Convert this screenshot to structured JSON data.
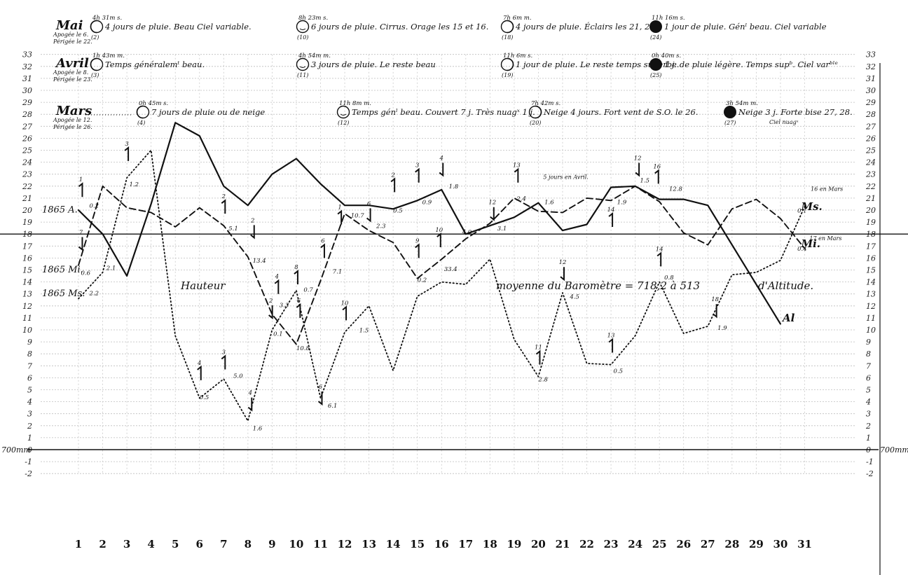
{
  "chart_data": {
    "type": "line",
    "x": [
      1,
      2,
      3,
      4,
      5,
      6,
      7,
      8,
      9,
      10,
      11,
      12,
      13,
      14,
      15,
      16,
      17,
      18,
      19,
      20,
      21,
      22,
      23,
      24,
      25,
      26,
      27,
      28,
      29,
      30,
      31
    ],
    "ylim": [
      -2,
      33
    ],
    "y_ticks": [
      "33",
      "32",
      "31",
      "30",
      "29",
      "28",
      "27",
      "26",
      "25",
      "24",
      "23",
      "22",
      "21",
      "20",
      "19",
      "18",
      "17",
      "16",
      "15",
      "14",
      "13",
      "12",
      "11",
      "10",
      "9",
      "8",
      "7",
      "6",
      "5",
      "4",
      "3",
      "2",
      "1",
      "0",
      "-1",
      "-2"
    ],
    "baseline_label_left": "700mm",
    "baseline_label_right": "700mm",
    "mean_line": {
      "value": 18,
      "label_left": "Hauteur",
      "label_mid": "moyenne du Baromètre = 718,2 à 513",
      "label_right": "d'Altitude."
    },
    "series": [
      {
        "name": "A",
        "start_label": "1865 A.",
        "end_label": "Al",
        "style": "solid",
        "values": [
          20,
          18,
          14.5,
          20.5,
          27.3,
          26.2,
          22,
          20.4,
          23,
          24.3,
          22.2,
          20.4,
          20.4,
          20.1,
          20.8,
          21.7,
          18,
          18.7,
          19.4,
          20.6,
          18.3,
          18.8,
          21.9,
          22,
          20.9,
          20.9,
          20.4,
          null,
          null,
          10.5,
          null
        ]
      },
      {
        "name": "M",
        "start_label": "1865 Mi.",
        "end_label": "Mi.",
        "style": "dashed",
        "values": [
          15.4,
          22,
          20.2,
          19.8,
          18.6,
          20.2,
          18.7,
          16.1,
          11.3,
          8.8,
          14.1,
          19.7,
          18.3,
          17.3,
          14.3,
          15.9,
          17.6,
          18.9,
          21,
          19.9,
          19.8,
          21,
          20.8,
          22,
          20.7,
          18.1,
          17.1,
          20.1,
          20.9,
          19.3,
          16.8
        ]
      },
      {
        "name": "Ms",
        "start_label": "1865 Ms.",
        "end_label": "Ms.",
        "style": "dotted",
        "values": [
          12.6,
          14.8,
          22.7,
          25,
          9.5,
          4.3,
          5.9,
          2.4,
          10,
          13.3,
          4.3,
          9.8,
          12,
          6.6,
          12.8,
          14,
          13.8,
          15.9,
          9.2,
          6.1,
          13.1,
          7.2,
          7.1,
          9.5,
          14,
          9.7,
          10.3,
          14.6,
          14.8,
          15.8,
          20.3
        ]
      }
    ],
    "point_labels": [
      {
        "t": "0.2",
        "x": 1.45,
        "y": 20.2
      },
      {
        "t": "0.6",
        "x": 1.1,
        "y": 14.6
      },
      {
        "t": "2.2",
        "x": 1.45,
        "y": 12.9
      },
      {
        "t": "2.1",
        "x": 2.15,
        "y": 15.0
      },
      {
        "t": "1.2",
        "x": 3.1,
        "y": 22.0
      },
      {
        "t": "5.1",
        "x": 7.2,
        "y": 18.3
      },
      {
        "t": "13.4",
        "x": 8.2,
        "y": 15.6
      },
      {
        "t": "0.5",
        "x": 6.0,
        "y": 4.2
      },
      {
        "t": "5.0",
        "x": 7.4,
        "y": 6.0
      },
      {
        "t": "1.6",
        "x": 8.2,
        "y": 1.6
      },
      {
        "t": "3.3",
        "x": 9.3,
        "y": 11.9
      },
      {
        "t": "0.1",
        "x": 9.05,
        "y": 9.5
      },
      {
        "t": "0.7",
        "x": 10.3,
        "y": 13.2
      },
      {
        "t": "10.8",
        "x": 10.0,
        "y": 8.3
      },
      {
        "t": "7.1",
        "x": 11.5,
        "y": 14.7
      },
      {
        "t": "6.1",
        "x": 11.3,
        "y": 3.5
      },
      {
        "t": "10.7",
        "x": 12.25,
        "y": 19.4
      },
      {
        "t": "2.3",
        "x": 13.3,
        "y": 18.5
      },
      {
        "t": "1.5",
        "x": 12.6,
        "y": 9.8
      },
      {
        "t": "0.5",
        "x": 14.0,
        "y": 19.8
      },
      {
        "t": "0.9",
        "x": 15.2,
        "y": 20.5
      },
      {
        "t": "1.8",
        "x": 16.3,
        "y": 21.8
      },
      {
        "t": "0.2",
        "x": 15.0,
        "y": 14.0
      },
      {
        "t": "33.4",
        "x": 16.1,
        "y": 14.9
      },
      {
        "t": "4.0",
        "x": 16.85,
        "y": 18.0
      },
      {
        "t": "3.1",
        "x": 18.3,
        "y": 18.3
      },
      {
        "t": "2.4",
        "x": 19.1,
        "y": 20.8
      },
      {
        "t": "1.6",
        "x": 20.25,
        "y": 20.5
      },
      {
        "t": "2.8",
        "x": 20.0,
        "y": 5.7
      },
      {
        "t": "4.5",
        "x": 21.3,
        "y": 12.6
      },
      {
        "t": "1.9",
        "x": 23.25,
        "y": 20.5
      },
      {
        "t": "0.5",
        "x": 23.1,
        "y": 6.4
      },
      {
        "t": "1.5",
        "x": 24.2,
        "y": 22.3
      },
      {
        "t": "12.8",
        "x": 25.4,
        "y": 21.6
      },
      {
        "t": "0.8",
        "x": 25.2,
        "y": 14.2
      },
      {
        "t": "1.9",
        "x": 27.4,
        "y": 10.0
      },
      {
        "t": "0.1",
        "x": 30.7,
        "y": 19.8
      },
      {
        "t": "0.4",
        "x": 30.7,
        "y": 16.6
      }
    ],
    "wind_labels": [
      {
        "t": "1",
        "x": 1.1,
        "y": 21.8
      },
      {
        "t": "7",
        "x": 1.1,
        "y": 17.4
      },
      {
        "t": "3",
        "x": 3.0,
        "y": 24.8
      },
      {
        "t": "2",
        "x": 7.0,
        "y": 20.4
      },
      {
        "t": "2",
        "x": 8.2,
        "y": 18.4
      },
      {
        "t": "4",
        "x": 6.0,
        "y": 6.5
      },
      {
        "t": "3",
        "x": 7.0,
        "y": 7.4
      },
      {
        "t": "4",
        "x": 8.1,
        "y": 4.0
      },
      {
        "t": "4",
        "x": 9.2,
        "y": 13.7
      },
      {
        "t": "8",
        "x": 10.0,
        "y": 14.5
      },
      {
        "t": "2",
        "x": 8.95,
        "y": 11.7
      },
      {
        "t": "6",
        "x": 10.1,
        "y": 11.7
      },
      {
        "t": "6",
        "x": 11.1,
        "y": 16.7
      },
      {
        "t": "6",
        "x": 11.0,
        "y": 4.5
      },
      {
        "t": "10",
        "x": 12.0,
        "y": 11.5
      },
      {
        "t": "1",
        "x": 11.8,
        "y": 19.5
      },
      {
        "t": "6",
        "x": 13.0,
        "y": 19.8
      },
      {
        "t": "2",
        "x": 14.0,
        "y": 22.2
      },
      {
        "t": "3",
        "x": 15.0,
        "y": 23.0
      },
      {
        "t": "4",
        "x": 16.0,
        "y": 23.6
      },
      {
        "t": "9",
        "x": 15.0,
        "y": 16.7
      },
      {
        "t": "10",
        "x": 15.9,
        "y": 17.6
      },
      {
        "t": "12",
        "x": 18.1,
        "y": 19.9
      },
      {
        "t": "13",
        "x": 19.1,
        "y": 23.0
      },
      {
        "t": "11",
        "x": 20.0,
        "y": 7.8
      },
      {
        "t": "12",
        "x": 21.0,
        "y": 14.9
      },
      {
        "t": "13",
        "x": 23.0,
        "y": 8.8
      },
      {
        "t": "14",
        "x": 23.0,
        "y": 19.3
      },
      {
        "t": "12",
        "x": 24.1,
        "y": 23.6
      },
      {
        "t": "16",
        "x": 24.9,
        "y": 22.9
      },
      {
        "t": "14",
        "x": 25.0,
        "y": 16.0
      },
      {
        "t": "18",
        "x": 27.3,
        "y": 11.8
      }
    ],
    "annotations": [
      {
        "t": "5 jours en Avril.",
        "x": 20.2,
        "y": 22.6
      },
      {
        "t": "16 en Mars",
        "x": 31.25,
        "y": 21.6
      },
      {
        "t": "17 en Mars",
        "x": 31.2,
        "y": 17.5
      }
    ],
    "header": [
      {
        "month": "Mai",
        "apogee": "Apogée le 6.",
        "perigee": "Périgée le 22.",
        "phases": [
          {
            "time": "4h 31m s.",
            "num": "(2)",
            "text": "4 jours de pluie. Beau Ciel variable."
          },
          {
            "time": "8h 23m s.",
            "num": "(10)",
            "text": "6 jours de pluie. Cirrus. Orage les 15 et 16."
          },
          {
            "time": "7h 6m m.",
            "num": "(18)",
            "text": "4 jours de pluie. Éclairs les 21, 23."
          },
          {
            "time": "11h 16m s.",
            "num": "(24)",
            "text": "1 jour de pluie. Génˡ beau. Ciel variable"
          }
        ]
      },
      {
        "month": "Avril",
        "apogee": "Apogée le 8.",
        "perigee": "Périgée le 23.",
        "phases": [
          {
            "time": "1h 43m m.",
            "num": "(3)",
            "text": "Temps généralemᵗ beau."
          },
          {
            "time": "4h 54m m.",
            "num": "(11)",
            "text": "3 jours de pluie. Le reste beau"
          },
          {
            "time": "11h 6m s.",
            "num": "(19)",
            "text": "1 jour de pluie. Le reste temps superbe."
          },
          {
            "time": "0h 40m s.",
            "num": "(25)",
            "text": "1 j. de pluie légère. Temps supᵇ. Ciel varᵇˡᵉ"
          }
        ]
      },
      {
        "month": "Mars",
        "apogee": "Apogée le 12.",
        "perigee": "Périgée le 26.",
        "phases": [
          {
            "time": "0h 45m s.",
            "num": "(4)",
            "text": "7 jours de pluie ou de neige"
          },
          {
            "time": "11h 8m m.",
            "num": "(12)",
            "text": "Temps génˡ beau. Couvert 7 j. Très nuagˣ 1 j."
          },
          {
            "time": "7h 42m s.",
            "num": "(20)",
            "text": "Neige 4 jours. Fort vent de S.O. le 26."
          },
          {
            "time": "3h 54m m.",
            "num": "(27)",
            "text": "Neige 3 j. Forte bise 27, 28."
          },
          {
            "note": "Ciel nuagˣ"
          }
        ]
      }
    ]
  }
}
